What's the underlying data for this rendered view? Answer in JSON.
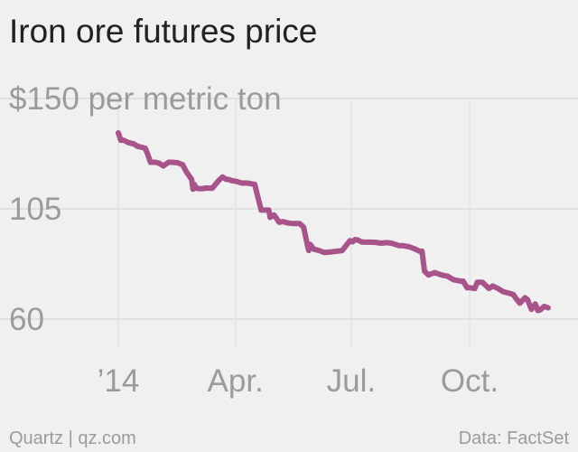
{
  "title": "Iron ore futures price",
  "footer": {
    "source_left": "Quartz | qz.com",
    "source_right": "Data: FactSet"
  },
  "colors": {
    "background": "#f0f0f0",
    "line": "#a8538a",
    "text": "#9b9b9b",
    "grid": "#dcdcdc"
  },
  "chart_data": {
    "type": "line",
    "title": "Iron ore futures price",
    "ylabel": "$150 per metric ton",
    "ylim": [
      45,
      150
    ],
    "yticks": [
      {
        "value": 150,
        "label": "$150 per metric ton"
      },
      {
        "value": 105,
        "label": "105"
      },
      {
        "value": 60,
        "label": "60"
      }
    ],
    "xticks": [
      {
        "value": 1,
        "label": "’14"
      },
      {
        "value": 92,
        "label": "Apr."
      },
      {
        "value": 182,
        "label": "Jul."
      },
      {
        "value": 274,
        "label": "Oct."
      }
    ],
    "x_unit": "day of year 2014",
    "grid": true,
    "series": [
      {
        "values_x": [
          1,
          3,
          5,
          9,
          13,
          16,
          20,
          22,
          24,
          26,
          30,
          33,
          36,
          40,
          43,
          47,
          51,
          54,
          58,
          59,
          60,
          62,
          66,
          69,
          74,
          79,
          82,
          85,
          87,
          89,
          90,
          91,
          94,
          97,
          101,
          107,
          112,
          118,
          119,
          122,
          124,
          126,
          129,
          133,
          137,
          142,
          145,
          148,
          149,
          150,
          153,
          157,
          161,
          164,
          168,
          175,
          181,
          183,
          185,
          187,
          190,
          193,
          197,
          201,
          205,
          210,
          213,
          216,
          219,
          222,
          227,
          232,
          235,
          237,
          239,
          242,
          247,
          252,
          257,
          260,
          262,
          265,
          267,
          269,
          272,
          274,
          278,
          280,
          284,
          289,
          292,
          296,
          300,
          305,
          308,
          310,
          313,
          317,
          319,
          322,
          325,
          327,
          329,
          332,
          335
        ],
        "values_y": [
          136,
          133,
          133,
          132,
          131.5,
          130.5,
          130,
          129.7,
          127,
          124,
          124,
          123.5,
          122.5,
          124,
          124,
          123.8,
          123,
          120,
          117,
          113,
          115,
          113.3,
          113.2,
          113.5,
          113.4,
          116.5,
          118,
          117,
          117,
          116.5,
          116.4,
          116.4,
          116,
          115.5,
          115.5,
          115,
          104.5,
          104.5,
          101.5,
          102.5,
          101,
          99.5,
          99.8,
          99.2,
          99,
          99,
          97.5,
          90,
          88,
          90.5,
          88.5,
          88,
          87.2,
          87.3,
          87.5,
          88,
          92,
          91.5,
          92.5,
          92.3,
          91.5,
          91.4,
          91.4,
          91.3,
          91,
          91.2,
          91,
          90.5,
          90,
          90,
          89.5,
          88.5,
          87.7,
          87.7,
          79.5,
          78,
          79,
          78,
          77.5,
          76.5,
          76,
          75.7,
          75.5,
          75.5,
          72.8,
          72.8,
          72.5,
          75,
          75,
          72.5,
          73.5,
          72.5,
          71.2,
          70.5,
          70,
          68.5,
          66.5,
          68.7,
          68,
          64,
          66.2,
          63.5,
          63.8,
          65.2,
          64.6
        ]
      }
    ]
  }
}
